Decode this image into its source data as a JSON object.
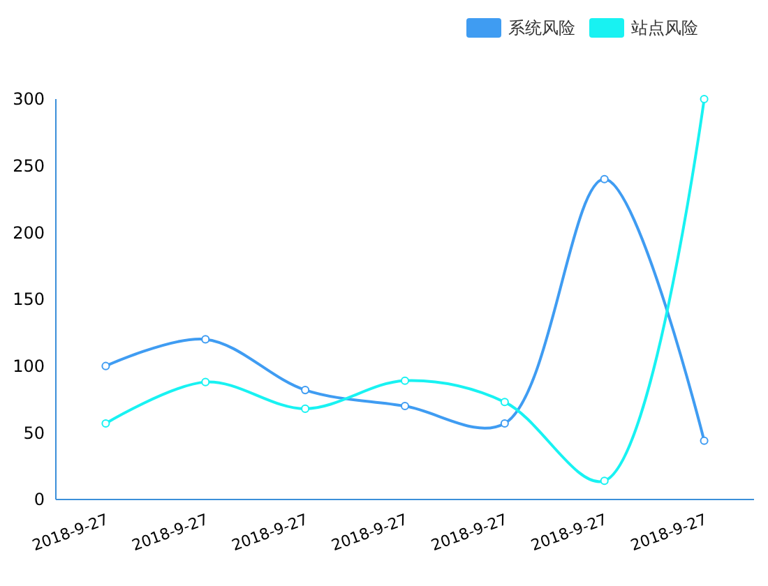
{
  "chart_data": {
    "type": "line",
    "categories": [
      "2018-9-27",
      "2018-9-27",
      "2018-9-27",
      "2018-9-27",
      "2018-9-27",
      "2018-9-27",
      "2018-9-27"
    ],
    "series": [
      {
        "name": "系统风险",
        "color": "#3f9cf2",
        "values": [
          100,
          120,
          82,
          70,
          57,
          240,
          44
        ]
      },
      {
        "name": "站点风险",
        "color": "#18f2f2",
        "values": [
          57,
          88,
          68,
          89,
          73,
          14,
          300
        ]
      }
    ],
    "ylim": [
      0,
      300
    ],
    "yticks": [
      0,
      50,
      100,
      150,
      200,
      250,
      300
    ],
    "grid": false,
    "legend": "top right",
    "marker": "circle",
    "line_style": "solid"
  }
}
